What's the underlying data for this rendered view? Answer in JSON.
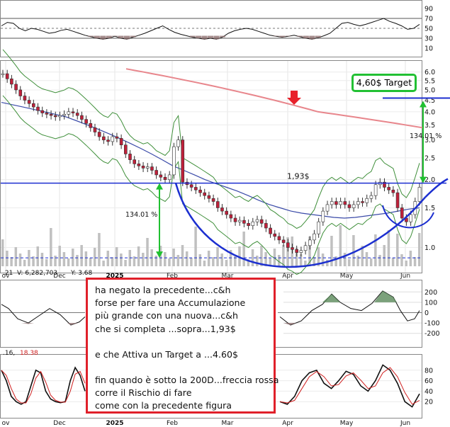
{
  "chart_data": {
    "type": "candlestick",
    "x_axis": {
      "labels": [
        "ov",
        "Dec",
        "2025",
        "Feb",
        "Mar",
        "Apr",
        "May",
        "Jun"
      ]
    },
    "price_axis": {
      "scale": "log",
      "ticks": [
        "6.0",
        "5.5",
        "5.0",
        "4.5",
        "4.0",
        "3.5",
        "3.0",
        "2.5",
        "2.0",
        "1.5",
        "1.0"
      ],
      "ylim": [
        0.85,
        6.3
      ]
    },
    "rsi_panel": {
      "ticks": [
        "90",
        "70",
        "50",
        "30",
        "10"
      ],
      "ylim": [
        0,
        100
      ]
    },
    "cci_panel": {
      "ticks": [
        "200",
        "100",
        "0",
        "-100",
        "-200"
      ],
      "ylim": [
        -250,
        250
      ]
    },
    "stoch_panel": {
      "ticks": [
        "80",
        "60",
        "40",
        "20"
      ],
      "ylim": [
        0,
        100
      ],
      "readout": [
        ".16,",
        "18.38"
      ]
    },
    "volume_readout": [
      "V: 6,282,703",
      "Y: 3.68",
      ".21"
    ],
    "annotations": {
      "resistance_label": "1,93$",
      "resistance_level": 1.93,
      "target_label": "4,60$ Target",
      "target_level": 4.6,
      "pct_left": "134.01 %",
      "pct_right": "134.01 %"
    },
    "series": [
      {
        "name": "price",
        "values": [
          5.9,
          5.6,
          5.3,
          5.0,
          4.7,
          4.5,
          4.35,
          4.2,
          4.05,
          3.95,
          3.9,
          3.85,
          3.8,
          3.85,
          3.9,
          4.0,
          3.95,
          3.85,
          3.7,
          3.55,
          3.4,
          3.25,
          3.1,
          3.0,
          2.95,
          3.1,
          3.05,
          2.85,
          2.6,
          2.45,
          2.35,
          2.3,
          2.25,
          2.28,
          2.2,
          2.1,
          2.05,
          2.0,
          2.1,
          2.8,
          3.0,
          1.95,
          1.9,
          1.85,
          1.8,
          1.75,
          1.7,
          1.65,
          1.6,
          1.5,
          1.45,
          1.4,
          1.35,
          1.3,
          1.32,
          1.28,
          1.25,
          1.3,
          1.33,
          1.28,
          1.22,
          1.15,
          1.12,
          1.08,
          1.05,
          1.0,
          0.98,
          0.95,
          0.97,
          1.02,
          1.08,
          1.15,
          1.3,
          1.45,
          1.55,
          1.6,
          1.55,
          1.6,
          1.55,
          1.5,
          1.55,
          1.6,
          1.58,
          1.65,
          1.7,
          1.9,
          1.95,
          1.85,
          1.8,
          1.75,
          1.5,
          1.35,
          1.3,
          1.4,
          1.6,
          1.85
        ]
      },
      {
        "name": "sma200",
        "values": [
          6.2,
          6.1,
          6.0,
          5.9,
          5.8,
          5.7,
          5.6,
          5.5,
          5.4,
          5.3,
          5.2,
          5.1,
          5.0,
          4.9,
          4.8,
          4.7,
          4.6,
          4.5,
          4.4,
          4.3,
          4.2,
          4.1,
          4.0,
          3.95,
          3.9,
          3.85,
          3.8,
          3.75,
          3.7,
          3.65,
          3.6,
          3.55,
          3.5,
          3.45,
          3.4
        ]
      },
      {
        "name": "sma50",
        "values": [
          4.4,
          4.3,
          4.2,
          4.1,
          4.0,
          3.9,
          3.8,
          3.65,
          3.5,
          3.35,
          3.2,
          3.05,
          2.9,
          2.75,
          2.6,
          2.45,
          2.3,
          2.2,
          2.1,
          2.0,
          1.92,
          1.85,
          1.78,
          1.7,
          1.62,
          1.55,
          1.5,
          1.45,
          1.42,
          1.4,
          1.38,
          1.36,
          1.35,
          1.36,
          1.38,
          1.4,
          1.42,
          1.45,
          1.48,
          1.5
        ]
      }
    ]
  },
  "note": {
    "lines": [
      "ha negato la precedente...c&h",
      "forse per fare una Accumulazione",
      "più grande con una nuova...c&h",
      "che si completa ...sopra...1,93$",
      "",
      "e che Attiva un Target a ...4.60$",
      "",
      "fin quando è sotto la 200D...freccia rossa",
      "corre il Rischio di fare",
      "come con la precedente figura"
    ]
  },
  "colors": {
    "candle_up": "#ffffff",
    "candle_down": "#c0203a",
    "sma200": "#e8868c",
    "sma50": "#3a4aa8",
    "bollinger": "#3f8f3a",
    "cup_curve": "#1c2fd0",
    "arrow": "#20c030",
    "red_arrow": "#e8202a",
    "volume": "#c0c0c0",
    "rsi_fill": "#8a6a6a"
  }
}
